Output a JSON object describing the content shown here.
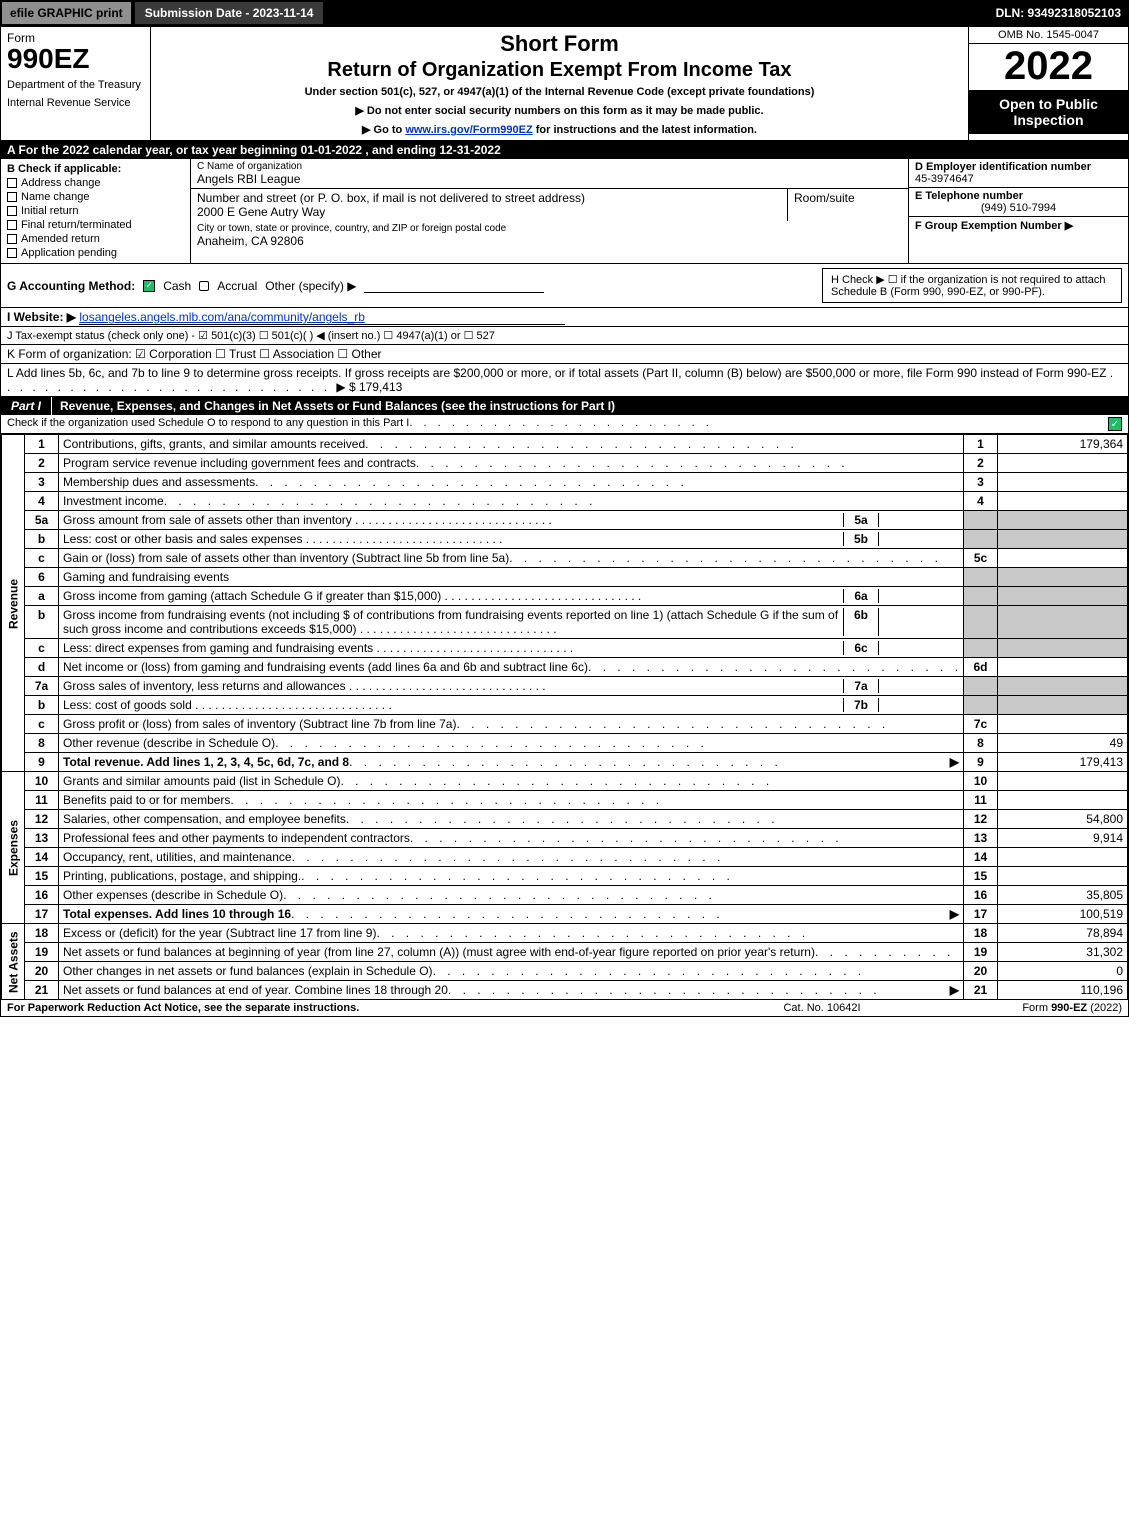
{
  "topbar": {
    "efile": "efile GRAPHIC print",
    "submission": "Submission Date - 2023-11-14",
    "dln": "DLN: 93492318052103"
  },
  "header": {
    "form_word": "Form",
    "form_num": "990EZ",
    "dept1": "Department of the Treasury",
    "dept2": "Internal Revenue Service",
    "title1": "Short Form",
    "title2": "Return of Organization Exempt From Income Tax",
    "subtitle": "Under section 501(c), 527, or 4947(a)(1) of the Internal Revenue Code (except private foundations)",
    "warn": "▶ Do not enter social security numbers on this form as it may be made public.",
    "goto": "▶ Go to www.irs.gov/Form990EZ for instructions and the latest information.",
    "omb": "OMB No. 1545-0047",
    "year": "2022",
    "open": "Open to Public Inspection"
  },
  "lineA": "A  For the 2022 calendar year, or tax year beginning 01-01-2022 , and ending 12-31-2022",
  "B": {
    "label": "B  Check if applicable:",
    "items": [
      "Address change",
      "Name change",
      "Initial return",
      "Final return/terminated",
      "Amended return",
      "Application pending"
    ]
  },
  "C": {
    "name_label": "C Name of organization",
    "name": "Angels RBI League",
    "addr_label": "Number and street (or P. O. box, if mail is not delivered to street address)",
    "room_label": "Room/suite",
    "addr": "2000 E Gene Autry Way",
    "city_label": "City or town, state or province, country, and ZIP or foreign postal code",
    "city": "Anaheim, CA  92806"
  },
  "D": {
    "ein_label": "D Employer identification number",
    "ein": "45-3974647",
    "tel_label": "E Telephone number",
    "tel": "(949) 510-7994",
    "grp_label": "F Group Exemption Number  ▶",
    "grp": ""
  },
  "G": {
    "label": "G Accounting Method:",
    "cash": "Cash",
    "accrual": "Accrual",
    "other": "Other (specify) ▶"
  },
  "H": "H   Check ▶  ☐  if the organization is not required to attach Schedule B (Form 990, 990-EZ, or 990-PF).",
  "I": {
    "label": "I Website: ▶",
    "val": "losangeles.angels.mlb.com/ana/community/angels_rb"
  },
  "J": "J Tax-exempt status (check only one) - ☑ 501(c)(3) ☐ 501(c)(  ) ◀ (insert no.) ☐ 4947(a)(1) or ☐ 527",
  "K": "K Form of organization:  ☑ Corporation  ☐ Trust  ☐ Association  ☐ Other",
  "L": {
    "text": "L Add lines 5b, 6c, and 7b to line 9 to determine gross receipts. If gross receipts are $200,000 or more, or if total assets (Part II, column (B) below) are $500,000 or more, file Form 990 instead of Form 990-EZ",
    "amount": "▶ $ 179,413"
  },
  "partI": {
    "tag": "Part I",
    "title": "Revenue, Expenses, and Changes in Net Assets or Fund Balances (see the instructions for Part I)",
    "sub": "Check if the organization used Schedule O to respond to any question in this Part I"
  },
  "sections": {
    "revenue": "Revenue",
    "expenses": "Expenses",
    "netassets": "Net Assets"
  },
  "rows": [
    {
      "n": "1",
      "d": "Contributions, gifts, grants, and similar amounts received",
      "rn": "1",
      "v": "179,364"
    },
    {
      "n": "2",
      "d": "Program service revenue including government fees and contracts",
      "rn": "2",
      "v": ""
    },
    {
      "n": "3",
      "d": "Membership dues and assessments",
      "rn": "3",
      "v": ""
    },
    {
      "n": "4",
      "d": "Investment income",
      "rn": "4",
      "v": ""
    },
    {
      "n": "5a",
      "d": "Gross amount from sale of assets other than inventory",
      "mn": "5a",
      "shade": true
    },
    {
      "n": "b",
      "d": "Less: cost or other basis and sales expenses",
      "mn": "5b",
      "shade": true
    },
    {
      "n": "c",
      "d": "Gain or (loss) from sale of assets other than inventory (Subtract line 5b from line 5a)",
      "rn": "5c",
      "v": ""
    },
    {
      "n": "6",
      "d": "Gaming and fundraising events",
      "shade": true,
      "noval": true
    },
    {
      "n": "a",
      "d": "Gross income from gaming (attach Schedule G if greater than $15,000)",
      "mn": "6a",
      "shade": true
    },
    {
      "n": "b",
      "d": "Gross income from fundraising events (not including $                     of contributions from fundraising events reported on line 1) (attach Schedule G if the sum of such gross income and contributions exceeds $15,000)",
      "mn": "6b",
      "shade": true
    },
    {
      "n": "c",
      "d": "Less: direct expenses from gaming and fundraising events",
      "mn": "6c",
      "shade": true
    },
    {
      "n": "d",
      "d": "Net income or (loss) from gaming and fundraising events (add lines 6a and 6b and subtract line 6c)",
      "rn": "6d",
      "v": ""
    },
    {
      "n": "7a",
      "d": "Gross sales of inventory, less returns and allowances",
      "mn": "7a",
      "shade": true
    },
    {
      "n": "b",
      "d": "Less: cost of goods sold",
      "mn": "7b",
      "shade": true
    },
    {
      "n": "c",
      "d": "Gross profit or (loss) from sales of inventory (Subtract line 7b from line 7a)",
      "rn": "7c",
      "v": ""
    },
    {
      "n": "8",
      "d": "Other revenue (describe in Schedule O)",
      "rn": "8",
      "v": "49"
    },
    {
      "n": "9",
      "d": "Total revenue. Add lines 1, 2, 3, 4, 5c, 6d, 7c, and 8",
      "rn": "9",
      "v": "179,413",
      "bold": true,
      "arrow": true
    }
  ],
  "exp_rows": [
    {
      "n": "10",
      "d": "Grants and similar amounts paid (list in Schedule O)",
      "rn": "10",
      "v": ""
    },
    {
      "n": "11",
      "d": "Benefits paid to or for members",
      "rn": "11",
      "v": ""
    },
    {
      "n": "12",
      "d": "Salaries, other compensation, and employee benefits",
      "rn": "12",
      "v": "54,800"
    },
    {
      "n": "13",
      "d": "Professional fees and other payments to independent contractors",
      "rn": "13",
      "v": "9,914"
    },
    {
      "n": "14",
      "d": "Occupancy, rent, utilities, and maintenance",
      "rn": "14",
      "v": ""
    },
    {
      "n": "15",
      "d": "Printing, publications, postage, and shipping.",
      "rn": "15",
      "v": ""
    },
    {
      "n": "16",
      "d": "Other expenses (describe in Schedule O)",
      "rn": "16",
      "v": "35,805"
    },
    {
      "n": "17",
      "d": "Total expenses. Add lines 10 through 16",
      "rn": "17",
      "v": "100,519",
      "bold": true,
      "arrow": true
    }
  ],
  "net_rows": [
    {
      "n": "18",
      "d": "Excess or (deficit) for the year (Subtract line 17 from line 9)",
      "rn": "18",
      "v": "78,894"
    },
    {
      "n": "19",
      "d": "Net assets or fund balances at beginning of year (from line 27, column (A)) (must agree with end-of-year figure reported on prior year's return)",
      "rn": "19",
      "v": "31,302"
    },
    {
      "n": "20",
      "d": "Other changes in net assets or fund balances (explain in Schedule O)",
      "rn": "20",
      "v": "0"
    },
    {
      "n": "21",
      "d": "Net assets or fund balances at end of year. Combine lines 18 through 20",
      "rn": "21",
      "v": "110,196",
      "arrow": true
    }
  ],
  "footer": {
    "left": "For Paperwork Reduction Act Notice, see the separate instructions.",
    "mid": "Cat. No. 10642I",
    "right": "Form 990-EZ (2022)"
  },
  "colors": {
    "black": "#000000",
    "gray_btn": "#8f8f8f",
    "gray_sub": "#3a3a3a",
    "shade": "#c8c8c8",
    "link": "#0033cc",
    "check": "#22bb66"
  }
}
